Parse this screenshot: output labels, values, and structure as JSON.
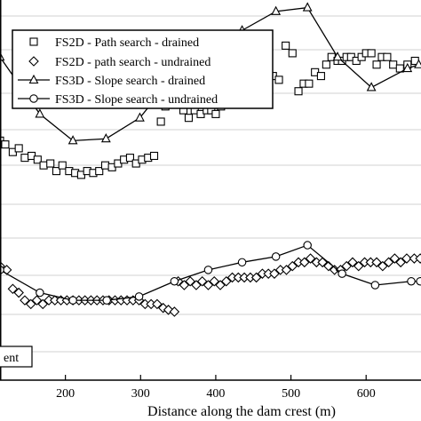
{
  "chart_data": {
    "type": "scatter",
    "xlabel": "Distance along the dam crest (m)",
    "ylabel": "",
    "xlim": [
      113,
      673
    ],
    "ylim": [
      0,
      100
    ],
    "x_ticks": [
      200,
      300,
      400,
      500,
      600
    ],
    "grid": "horizontal",
    "legend_position": "top-left",
    "note_label": "ent",
    "series": [
      {
        "name": "FS2D - Path search - drained",
        "marker": "square",
        "line": false,
        "points": [
          [
            113,
            63
          ],
          [
            120,
            62
          ],
          [
            130,
            60
          ],
          [
            138,
            61
          ],
          [
            146,
            58.5
          ],
          [
            155,
            59
          ],
          [
            163,
            58
          ],
          [
            171,
            56.5
          ],
          [
            180,
            57
          ],
          [
            188,
            55
          ],
          [
            196,
            56.5
          ],
          [
            205,
            55
          ],
          [
            213,
            54.5
          ],
          [
            221,
            54
          ],
          [
            229,
            55
          ],
          [
            237,
            54.5
          ],
          [
            245,
            55
          ],
          [
            253,
            56.5
          ],
          [
            262,
            56
          ],
          [
            270,
            57
          ],
          [
            278,
            58
          ],
          [
            286,
            58.5
          ],
          [
            294,
            57
          ],
          [
            302,
            58
          ],
          [
            310,
            58.5
          ],
          [
            318,
            59
          ],
          [
            327,
            68
          ],
          [
            333,
            72
          ],
          [
            340,
            76
          ],
          [
            345,
            74
          ],
          [
            350,
            73
          ],
          [
            357,
            71
          ],
          [
            364,
            69
          ],
          [
            372,
            71
          ],
          [
            380,
            70
          ],
          [
            388,
            71
          ],
          [
            394,
            71
          ],
          [
            400,
            70
          ],
          [
            407,
            72
          ],
          [
            413,
            73
          ],
          [
            420,
            75
          ],
          [
            427,
            77
          ],
          [
            434,
            75
          ],
          [
            441,
            78
          ],
          [
            448,
            80
          ],
          [
            455,
            80
          ],
          [
            462,
            81
          ],
          [
            469,
            82
          ],
          [
            476,
            80
          ],
          [
            484,
            79
          ],
          [
            493,
            88
          ],
          [
            502,
            86
          ],
          [
            510,
            76
          ],
          [
            517,
            78
          ],
          [
            524,
            78
          ],
          [
            532,
            81
          ],
          [
            540,
            80
          ],
          [
            547,
            83
          ],
          [
            554,
            85
          ],
          [
            562,
            84
          ],
          [
            568,
            84
          ],
          [
            574,
            85
          ],
          [
            580,
            85
          ],
          [
            587,
            84
          ],
          [
            594,
            85
          ],
          [
            600,
            86
          ],
          [
            607,
            86
          ],
          [
            614,
            83
          ],
          [
            621,
            85
          ],
          [
            628,
            85
          ],
          [
            636,
            83
          ],
          [
            645,
            82
          ],
          [
            655,
            83
          ],
          [
            665,
            84
          ]
        ]
      },
      {
        "name": "FS2D - path search - undrained",
        "marker": "diamond",
        "line": false,
        "points": [
          [
            113,
            30
          ],
          [
            122,
            29
          ],
          [
            130,
            24
          ],
          [
            138,
            23
          ],
          [
            146,
            21
          ],
          [
            154,
            20
          ],
          [
            162,
            21
          ],
          [
            170,
            20
          ],
          [
            178,
            21
          ],
          [
            186,
            21
          ],
          [
            194,
            21
          ],
          [
            202,
            21
          ],
          [
            210,
            21
          ],
          [
            218,
            21
          ],
          [
            226,
            21
          ],
          [
            234,
            21
          ],
          [
            242,
            21
          ],
          [
            250,
            21
          ],
          [
            258,
            21
          ],
          [
            266,
            21
          ],
          [
            274,
            21
          ],
          [
            282,
            21
          ],
          [
            290,
            21
          ],
          [
            298,
            21
          ],
          [
            306,
            20
          ],
          [
            314,
            20
          ],
          [
            322,
            20
          ],
          [
            330,
            19
          ],
          [
            337,
            18.5
          ],
          [
            345,
            18
          ],
          [
            350,
            26
          ],
          [
            358,
            25
          ],
          [
            366,
            26
          ],
          [
            374,
            25
          ],
          [
            382,
            26
          ],
          [
            390,
            25
          ],
          [
            398,
            26
          ],
          [
            406,
            25
          ],
          [
            414,
            26
          ],
          [
            422,
            27
          ],
          [
            430,
            27
          ],
          [
            438,
            27
          ],
          [
            446,
            27
          ],
          [
            454,
            27
          ],
          [
            462,
            28
          ],
          [
            470,
            28
          ],
          [
            478,
            28
          ],
          [
            486,
            29
          ],
          [
            494,
            29
          ],
          [
            502,
            30
          ],
          [
            510,
            31
          ],
          [
            518,
            31
          ],
          [
            526,
            32
          ],
          [
            534,
            31
          ],
          [
            542,
            31
          ],
          [
            550,
            30
          ],
          [
            558,
            29
          ],
          [
            566,
            29
          ],
          [
            574,
            30
          ],
          [
            582,
            31
          ],
          [
            590,
            30
          ],
          [
            598,
            31
          ],
          [
            606,
            31
          ],
          [
            614,
            31
          ],
          [
            622,
            30
          ],
          [
            630,
            31
          ],
          [
            638,
            32
          ],
          [
            646,
            31
          ],
          [
            654,
            32
          ],
          [
            664,
            32
          ],
          [
            672,
            32
          ]
        ]
      },
      {
        "name": "FS3D - Slope search - drained",
        "marker": "triangle",
        "line": true,
        "points": [
          [
            113,
            85
          ],
          [
            166,
            70
          ],
          [
            210,
            63
          ],
          [
            254,
            63.5
          ],
          [
            299,
            69
          ],
          [
            344,
            80
          ],
          [
            390,
            85
          ],
          [
            435,
            92
          ],
          [
            480,
            97
          ],
          [
            522,
            98
          ],
          [
            562,
            85
          ],
          [
            607,
            77
          ],
          [
            655,
            82
          ],
          [
            670,
            83
          ]
        ]
      },
      {
        "name": "FS3D - Slope search - undrained",
        "marker": "circle",
        "line": true,
        "points": [
          [
            113,
            29
          ],
          [
            166,
            23
          ],
          [
            210,
            21
          ],
          [
            255,
            21
          ],
          [
            298,
            22
          ],
          [
            345,
            26
          ],
          [
            390,
            29
          ],
          [
            435,
            31
          ],
          [
            480,
            32.5
          ],
          [
            522,
            35.5
          ],
          [
            568,
            28
          ],
          [
            612,
            25
          ],
          [
            660,
            26
          ],
          [
            672,
            26
          ]
        ]
      }
    ]
  }
}
